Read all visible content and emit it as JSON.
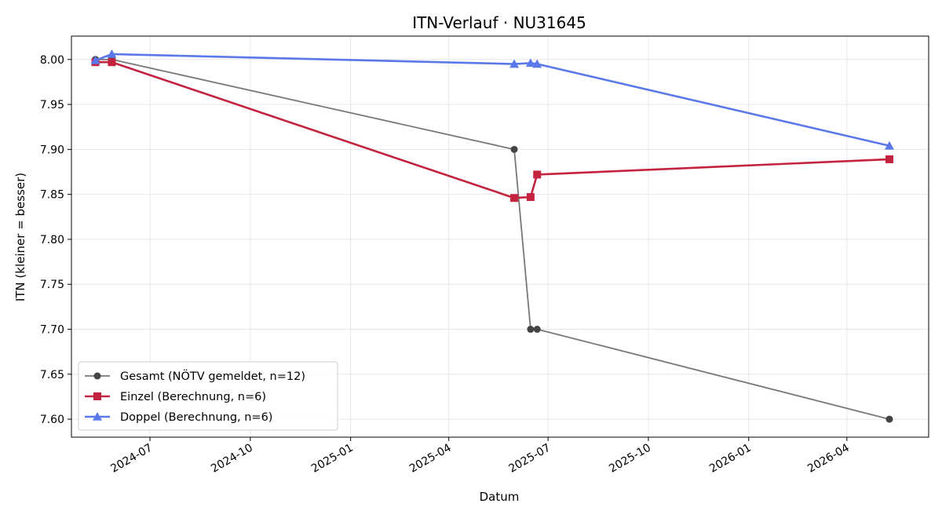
{
  "chart_data": {
    "type": "line",
    "title": "ITN-Verlauf · NU31645",
    "xlabel": "Datum",
    "ylabel": "ITN  (kleiner = besser)",
    "x_type": "date",
    "xlim": [
      "2024-04-20",
      "2026-06-15"
    ],
    "ylim": [
      7.58,
      8.026
    ],
    "x_ticks": [
      "2024-07-01",
      "2024-10-01",
      "2025-01-01",
      "2025-04-01",
      "2025-07-01",
      "2025-10-01",
      "2026-01-01",
      "2026-04-01"
    ],
    "x_tick_labels": [
      "2024-07",
      "2024-10",
      "2025-01",
      "2025-04",
      "2025-07",
      "2025-10",
      "2026-01",
      "2026-04"
    ],
    "y_ticks": [
      7.6,
      7.65,
      7.7,
      7.75,
      7.8,
      7.85,
      7.9,
      7.95,
      8.0
    ],
    "y_tick_labels": [
      "7.60",
      "7.65",
      "7.70",
      "7.75",
      "7.80",
      "7.85",
      "7.90",
      "7.95",
      "8.00"
    ],
    "grid": true,
    "legend_position": "bottom-left",
    "series": [
      {
        "name": "Gesamt (NÖTV gemeldet, n=12)",
        "color": "#777777",
        "marker_color": "#444444",
        "marker": "circle",
        "line_width": 1.8,
        "points": [
          {
            "x": "2024-05-12",
            "y": 8.0
          },
          {
            "x": "2024-05-27",
            "y": 8.0
          },
          {
            "x": "2025-05-31",
            "y": 7.9
          },
          {
            "x": "2025-06-15",
            "y": 7.7
          },
          {
            "x": "2025-06-21",
            "y": 7.7
          },
          {
            "x": "2026-05-10",
            "y": 7.6
          }
        ]
      },
      {
        "name": "Einzel (Berechnung, n=6)",
        "color": "#c4233f",
        "marker_color": "#c4233f",
        "marker": "square",
        "line_width": 2.6,
        "points": [
          {
            "x": "2024-05-12",
            "y": 7.997
          },
          {
            "x": "2024-05-27",
            "y": 7.997
          },
          {
            "x": "2025-05-31",
            "y": 7.846
          },
          {
            "x": "2025-06-15",
            "y": 7.847
          },
          {
            "x": "2025-06-21",
            "y": 7.872
          },
          {
            "x": "2026-05-10",
            "y": 7.889
          }
        ]
      },
      {
        "name": "Doppel (Berechnung, n=6)",
        "color": "#5a78ea",
        "marker_color": "#5a78ea",
        "marker": "triangle",
        "line_width": 2.6,
        "points": [
          {
            "x": "2024-05-12",
            "y": 7.999
          },
          {
            "x": "2024-05-27",
            "y": 8.006
          },
          {
            "x": "2025-05-31",
            "y": 7.995
          },
          {
            "x": "2025-06-15",
            "y": 7.996
          },
          {
            "x": "2025-06-21",
            "y": 7.995
          },
          {
            "x": "2026-05-10",
            "y": 7.904
          }
        ]
      }
    ]
  }
}
